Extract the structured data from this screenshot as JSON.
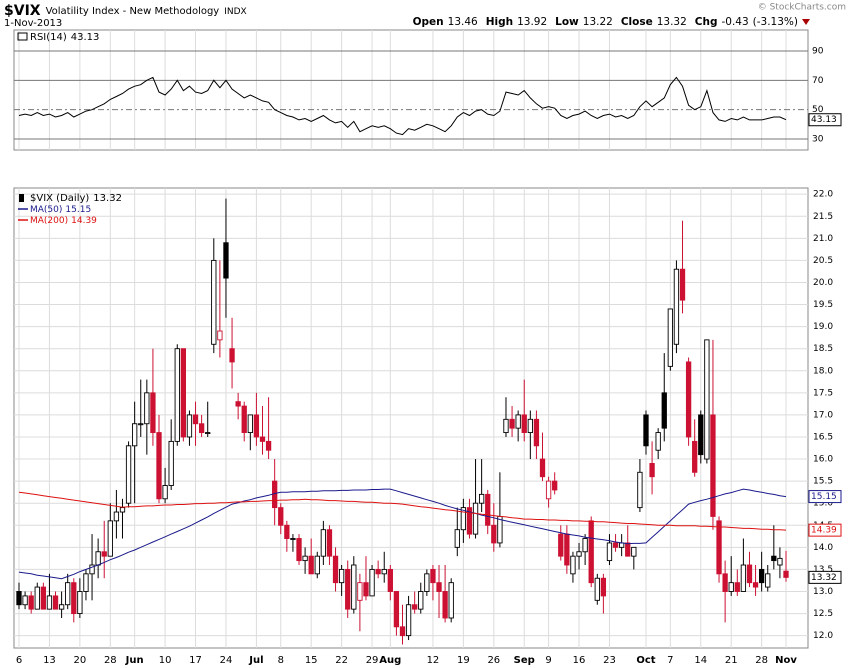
{
  "header": {
    "symbol": "$VIX",
    "name": "Volatility Index - New Methodology",
    "exchange": "INDX",
    "date": "1-Nov-2013",
    "quote": [
      {
        "label": "Open",
        "value": 13.46
      },
      {
        "label": "High",
        "value": 13.92
      },
      {
        "label": "Low",
        "value": 13.22
      },
      {
        "label": "Close",
        "value": 13.32
      },
      {
        "label": "Chg",
        "value": -0.43,
        "pct": "(-3.13%)"
      }
    ]
  },
  "watermark": "© StockCharts.com",
  "chart_data": [
    {
      "type": "line",
      "ylim": [
        22.5,
        104.3
      ],
      "yticks": [
        30,
        50,
        70,
        90
      ],
      "grid": true,
      "series": [
        {
          "name": "RSI(14)",
          "color": "#000000",
          "values": [
            46,
            47,
            46,
            48,
            46,
            47,
            45,
            46,
            48,
            45,
            47,
            49,
            50,
            52,
            54,
            57,
            59,
            61,
            64,
            66,
            67,
            70,
            72,
            62,
            60,
            64,
            70,
            63,
            66,
            62,
            61,
            63,
            70,
            65,
            70,
            64,
            61,
            58,
            60,
            58,
            56,
            55,
            50,
            48,
            46,
            45,
            43,
            44,
            42,
            44,
            46,
            43,
            41,
            42,
            38,
            42,
            35,
            37,
            39,
            38,
            39,
            37,
            34,
            33,
            37,
            36,
            38,
            40,
            39,
            37,
            35,
            39,
            45,
            48,
            46,
            49,
            50,
            47,
            46,
            49,
            62,
            61,
            60,
            63,
            58,
            54,
            51,
            52,
            51,
            46,
            44,
            46,
            47,
            49,
            46,
            44,
            46,
            47,
            45,
            46,
            44,
            46,
            52,
            56,
            52,
            55,
            58,
            67,
            72,
            66,
            53,
            50,
            52,
            63,
            48,
            43,
            42,
            44,
            43,
            45,
            43,
            43,
            43,
            44,
            45,
            45,
            43.13
          ]
        }
      ]
    },
    {
      "type": "candlestick",
      "ylim": [
        11.72,
        22.14
      ],
      "grid": true,
      "yticks": [
        {
          "value": 12,
          "label": "12.0"
        },
        12.5,
        {
          "value": 13,
          "label": "13.0"
        },
        13.5,
        {
          "value": 14,
          "label": "14.0"
        },
        14.5,
        {
          "value": 15,
          "label": "15.0"
        },
        15.5,
        {
          "value": 16,
          "label": "16.0"
        },
        16.5,
        {
          "value": 17,
          "label": "17.0"
        },
        17.5,
        {
          "value": 18,
          "label": "18.0"
        },
        18.5,
        {
          "value": 19,
          "label": "19.0"
        },
        19.5,
        {
          "value": 20,
          "label": "20.0"
        },
        20.5,
        {
          "value": 21,
          "label": "21.0"
        },
        21.5,
        {
          "value": 22,
          "label": "22.0"
        }
      ],
      "categories": [
        "6",
        null,
        null,
        null,
        null,
        "13",
        null,
        null,
        null,
        null,
        "20",
        null,
        null,
        null,
        null,
        "28",
        null,
        null,
        null,
        "Jun",
        null,
        null,
        null,
        null,
        "10",
        null,
        null,
        null,
        null,
        "17",
        null,
        null,
        null,
        null,
        "24",
        null,
        null,
        null,
        null,
        "Jul",
        null,
        null,
        null,
        "8",
        null,
        null,
        null,
        null,
        "15",
        null,
        null,
        null,
        null,
        "22",
        null,
        null,
        null,
        null,
        "29",
        null,
        null,
        "Aug",
        null,
        null,
        null,
        null,
        null,
        null,
        "12",
        null,
        null,
        null,
        null,
        "19",
        null,
        null,
        null,
        null,
        "26",
        null,
        null,
        null,
        null,
        "Sep",
        null,
        null,
        null,
        "9",
        null,
        null,
        null,
        null,
        "16",
        null,
        null,
        null,
        null,
        "23",
        null,
        null,
        null,
        null,
        null,
        "Oct",
        null,
        null,
        null,
        "7",
        null,
        null,
        null,
        null,
        "14",
        null,
        null,
        null,
        null,
        "21",
        null,
        null,
        null,
        null,
        "28",
        null,
        null,
        null,
        "Nov"
      ],
      "ohlc": {
        "name": "$VIX (Daily)",
        "up_color": "#000000",
        "down_color": "#cc1133",
        "open": [
          13.0,
          12.7,
          12.9,
          12.6,
          13.1,
          12.6,
          12.9,
          12.6,
          12.7,
          13.2,
          12.5,
          13.0,
          13.4,
          13.6,
          13.9,
          13.8,
          14.6,
          14.8,
          15.0,
          16.3,
          16.8,
          16.8,
          17.5,
          16.6,
          15.1,
          15.4,
          16.4,
          18.5,
          16.5,
          17.0,
          16.8,
          16.6,
          18.6,
          18.7,
          20.9,
          18.5,
          17.3,
          17.2,
          16.6,
          17.0,
          16.5,
          16.4,
          15.5,
          14.9,
          14.5,
          14.2,
          14.2,
          13.7,
          13.8,
          13.4,
          13.8,
          14.4,
          13.8,
          13.2,
          13.5,
          12.6,
          12.8,
          13.2,
          12.9,
          13.5,
          13.4,
          13.5,
          13.0,
          12.2,
          12.0,
          12.7,
          12.6,
          13.0,
          13.5,
          13.2,
          13.0,
          12.4,
          14.0,
          14.4,
          14.9,
          14.3,
          15.0,
          15.2,
          14.5,
          14.1,
          16.6,
          16.9,
          16.7,
          17.0,
          16.6,
          16.9,
          16.0,
          15.1,
          15.5,
          14.3,
          14.3,
          13.4,
          13.8,
          13.9,
          14.6,
          12.8,
          13.3,
          13.7,
          14.1,
          14.0,
          14.1,
          13.8,
          14.9,
          17.0,
          15.9,
          16.2,
          17.5,
          18.1,
          18.6,
          20.3,
          18.2,
          16.4,
          17.0,
          16.0,
          17.0,
          14.6,
          13.4,
          13.0,
          13.2,
          13.0,
          13.6,
          13.2,
          13.5,
          13.1,
          13.8,
          13.6,
          13.46
        ],
        "high": [
          13.2,
          13.0,
          13.0,
          13.2,
          13.2,
          13.4,
          13.0,
          13.0,
          13.4,
          13.3,
          13.3,
          13.5,
          14.3,
          14.2,
          14.6,
          15.0,
          15.3,
          15.1,
          16.4,
          17.3,
          17.8,
          17.8,
          18.5,
          17.0,
          15.8,
          16.9,
          18.6,
          18.5,
          17.1,
          17.3,
          17.0,
          17.3,
          21.0,
          20.5,
          21.9,
          19.2,
          17.5,
          17.3,
          17.0,
          17.5,
          17.2,
          17.4,
          16.0,
          15.0,
          14.6,
          14.3,
          14.3,
          14.0,
          14.2,
          13.9,
          14.6,
          14.5,
          14.0,
          13.6,
          13.7,
          13.8,
          13.4,
          13.8,
          13.6,
          13.7,
          13.9,
          13.6,
          13.0,
          12.7,
          12.9,
          13.0,
          13.2,
          13.5,
          13.6,
          13.6,
          13.6,
          13.3,
          14.9,
          15.1,
          15.1,
          16.0,
          16.0,
          15.3,
          15.0,
          15.7,
          17.4,
          17.2,
          17.1,
          17.8,
          17.1,
          17.1,
          16.6,
          15.6,
          15.7,
          14.5,
          14.5,
          13.9,
          14.1,
          14.3,
          14.7,
          13.4,
          13.4,
          14.3,
          14.3,
          14.3,
          14.5,
          14.0,
          16.0,
          17.1,
          16.4,
          16.7,
          18.4,
          19.4,
          20.5,
          21.4,
          18.3,
          16.9,
          17.1,
          18.7,
          18.7,
          14.7,
          13.7,
          13.8,
          13.5,
          14.2,
          13.9,
          13.6,
          13.9,
          13.6,
          14.5,
          14.0,
          13.92
        ],
        "low": [
          12.6,
          12.6,
          12.5,
          12.6,
          12.6,
          12.6,
          12.6,
          12.4,
          12.6,
          12.3,
          12.4,
          12.8,
          12.8,
          13.3,
          13.3,
          13.8,
          14.2,
          14.2,
          14.9,
          15.0,
          16.5,
          16.1,
          16.3,
          15.0,
          15.0,
          15.3,
          16.3,
          16.4,
          16.3,
          16.3,
          16.5,
          16.5,
          18.4,
          18.3,
          19.2,
          17.6,
          16.9,
          16.4,
          16.2,
          16.3,
          16.1,
          16.0,
          14.5,
          14.3,
          13.9,
          13.9,
          13.6,
          13.4,
          13.4,
          13.3,
          13.6,
          13.6,
          13.0,
          12.9,
          12.4,
          12.5,
          12.1,
          12.8,
          12.9,
          13.3,
          13.2,
          12.8,
          12.0,
          11.8,
          11.9,
          12.5,
          12.5,
          12.9,
          12.8,
          12.4,
          12.3,
          12.3,
          13.8,
          14.1,
          14.2,
          14.2,
          14.8,
          14.3,
          13.9,
          14.0,
          16.5,
          16.5,
          16.4,
          16.4,
          16.0,
          16.0,
          15.5,
          14.9,
          15.2,
          13.7,
          13.4,
          13.2,
          13.5,
          13.6,
          13.1,
          12.7,
          12.5,
          13.6,
          13.9,
          13.8,
          13.8,
          13.5,
          14.8,
          16.1,
          15.2,
          16.0,
          16.4,
          18.0,
          18.4,
          19.3,
          16.3,
          15.6,
          15.9,
          15.9,
          14.4,
          13.2,
          12.3,
          12.9,
          12.9,
          13.0,
          13.1,
          12.9,
          13.0,
          13.0,
          13.5,
          13.3,
          13.22
        ],
        "close": [
          12.7,
          12.9,
          12.6,
          13.1,
          12.6,
          12.9,
          12.6,
          12.7,
          13.2,
          12.5,
          13.0,
          13.4,
          13.6,
          13.9,
          13.8,
          14.6,
          14.8,
          14.9,
          16.3,
          16.8,
          16.8,
          17.5,
          16.6,
          15.1,
          15.4,
          16.4,
          18.5,
          16.5,
          17.0,
          16.8,
          16.6,
          16.6,
          20.5,
          18.9,
          20.1,
          18.2,
          17.2,
          16.6,
          17.0,
          16.5,
          16.4,
          16.2,
          14.9,
          14.5,
          14.2,
          14.2,
          13.7,
          13.8,
          13.4,
          13.8,
          14.4,
          13.8,
          13.2,
          13.5,
          12.6,
          13.6,
          13.2,
          12.9,
          13.5,
          13.4,
          13.5,
          13.0,
          12.2,
          12.0,
          12.7,
          12.6,
          13.0,
          13.4,
          13.2,
          13.0,
          12.4,
          13.2,
          14.4,
          14.9,
          14.3,
          15.0,
          15.2,
          14.5,
          14.1,
          14.7,
          16.9,
          16.7,
          17.0,
          16.6,
          16.9,
          16.3,
          15.6,
          15.5,
          15.3,
          13.8,
          13.6,
          13.8,
          13.9,
          14.2,
          13.2,
          13.3,
          12.9,
          14.1,
          14.0,
          14.1,
          13.8,
          14.0,
          15.7,
          16.3,
          15.6,
          16.6,
          16.7,
          19.4,
          20.3,
          19.6,
          16.5,
          15.7,
          16.1,
          18.7,
          14.7,
          13.4,
          13.0,
          13.2,
          13.0,
          13.6,
          13.2,
          13.1,
          13.2,
          13.4,
          13.7,
          13.75,
          13.32
        ]
      },
      "series": [
        {
          "name": "MA(50)",
          "color": "#1a1a8c",
          "values": [
            13.44,
            13.42,
            13.4,
            13.37,
            13.35,
            13.33,
            13.31,
            13.29,
            13.34,
            13.39,
            13.45,
            13.5,
            13.55,
            13.6,
            13.66,
            13.72,
            13.77,
            13.83,
            13.89,
            13.94,
            14.0,
            14.06,
            14.12,
            14.18,
            14.24,
            14.3,
            14.36,
            14.42,
            14.48,
            14.55,
            14.62,
            14.69,
            14.77,
            14.84,
            14.91,
            14.98,
            15.01,
            15.05,
            15.08,
            15.12,
            15.15,
            15.18,
            15.22,
            15.25,
            15.25,
            15.26,
            15.26,
            15.26,
            15.27,
            15.27,
            15.28,
            15.28,
            15.28,
            15.29,
            15.29,
            15.3,
            15.3,
            15.3,
            15.31,
            15.31,
            15.32,
            15.32,
            15.28,
            15.24,
            15.2,
            15.16,
            15.12,
            15.08,
            15.04,
            15.0,
            14.95,
            14.91,
            14.87,
            14.84,
            14.8,
            14.77,
            14.73,
            14.7,
            14.67,
            14.63,
            14.6,
            14.57,
            14.54,
            14.51,
            14.48,
            14.45,
            14.42,
            14.39,
            14.36,
            14.33,
            14.3,
            14.28,
            14.26,
            14.23,
            14.21,
            14.19,
            14.17,
            14.15,
            14.12,
            14.1,
            14.08,
            14.09,
            14.09,
            14.1,
            14.23,
            14.35,
            14.48,
            14.6,
            14.73,
            14.85,
            14.98,
            15.02,
            15.06,
            15.09,
            15.13,
            15.17,
            15.21,
            15.24,
            15.28,
            15.32,
            15.3,
            15.27,
            15.25,
            15.22,
            15.2,
            15.17,
            15.15
          ]
        },
        {
          "name": "MA(200)",
          "color": "#dd1111",
          "values": [
            15.25,
            15.23,
            15.21,
            15.19,
            15.17,
            15.15,
            15.13,
            15.11,
            15.09,
            15.07,
            15.05,
            15.03,
            15.01,
            14.99,
            14.97,
            14.95,
            14.93,
            14.91,
            14.92,
            14.92,
            14.93,
            14.94,
            14.94,
            14.95,
            14.96,
            14.96,
            14.97,
            14.97,
            14.98,
            14.99,
            14.99,
            15.0,
            15.0,
            15.01,
            15.01,
            15.02,
            15.03,
            15.03,
            15.04,
            15.04,
            15.05,
            15.06,
            15.06,
            15.07,
            15.07,
            15.08,
            15.08,
            15.09,
            15.08,
            15.08,
            15.07,
            15.06,
            15.06,
            15.05,
            15.04,
            15.04,
            15.03,
            15.02,
            15.02,
            15.01,
            15.0,
            15.0,
            14.99,
            14.98,
            14.96,
            14.94,
            14.92,
            14.91,
            14.89,
            14.87,
            14.85,
            14.84,
            14.82,
            14.8,
            14.78,
            14.77,
            14.75,
            14.74,
            14.72,
            14.7,
            14.69,
            14.67,
            14.66,
            14.64,
            14.64,
            14.63,
            14.63,
            14.62,
            14.62,
            14.61,
            14.61,
            14.6,
            14.6,
            14.59,
            14.59,
            14.58,
            14.58,
            14.57,
            14.56,
            14.55,
            14.54,
            14.54,
            14.53,
            14.52,
            14.51,
            14.5,
            14.5,
            14.5,
            14.49,
            14.49,
            14.49,
            14.49,
            14.48,
            14.48,
            14.47,
            14.46,
            14.46,
            14.45,
            14.44,
            14.43,
            14.43,
            14.42,
            14.41,
            14.41,
            14.4,
            14.4,
            14.39
          ]
        }
      ]
    }
  ]
}
